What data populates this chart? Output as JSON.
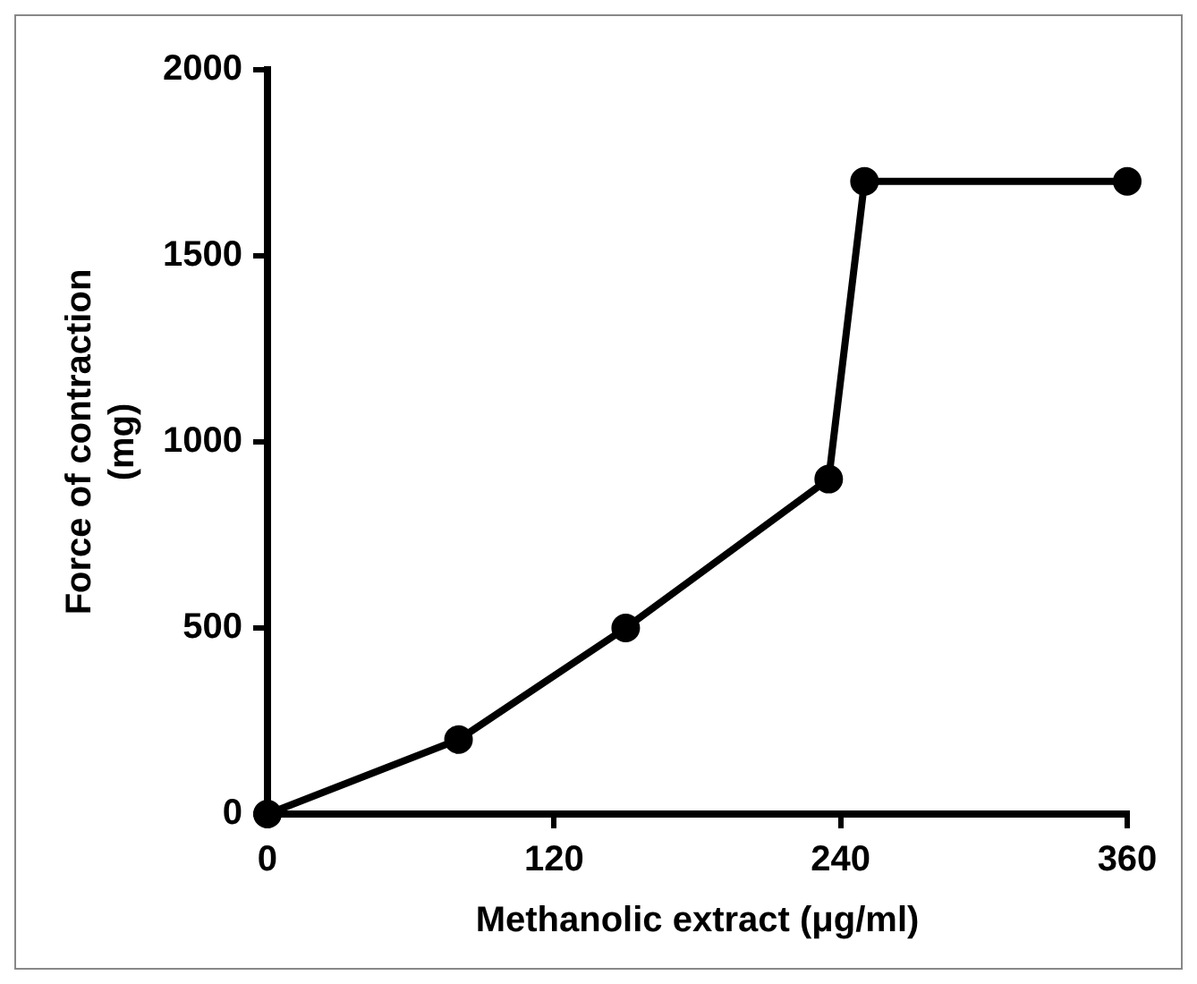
{
  "chart_data": {
    "type": "line",
    "xlabel": "Methanolic extract (μg/ml)",
    "ylabel": "Force of contraction\n(mg)",
    "x": [
      0,
      80,
      150,
      235,
      250,
      360
    ],
    "series": [
      {
        "color": "#000000",
        "values": [
          0,
          200,
          500,
          900,
          1700,
          1700
        ]
      }
    ],
    "xlim": [
      0,
      360
    ],
    "xticks": [
      0,
      120,
      240,
      360
    ],
    "ylim": [
      0,
      2000
    ],
    "yticks": [
      0,
      500,
      1000,
      1500,
      2000
    ],
    "grid": false,
    "legend": false,
    "marker": "circle",
    "line_style": "solid"
  }
}
